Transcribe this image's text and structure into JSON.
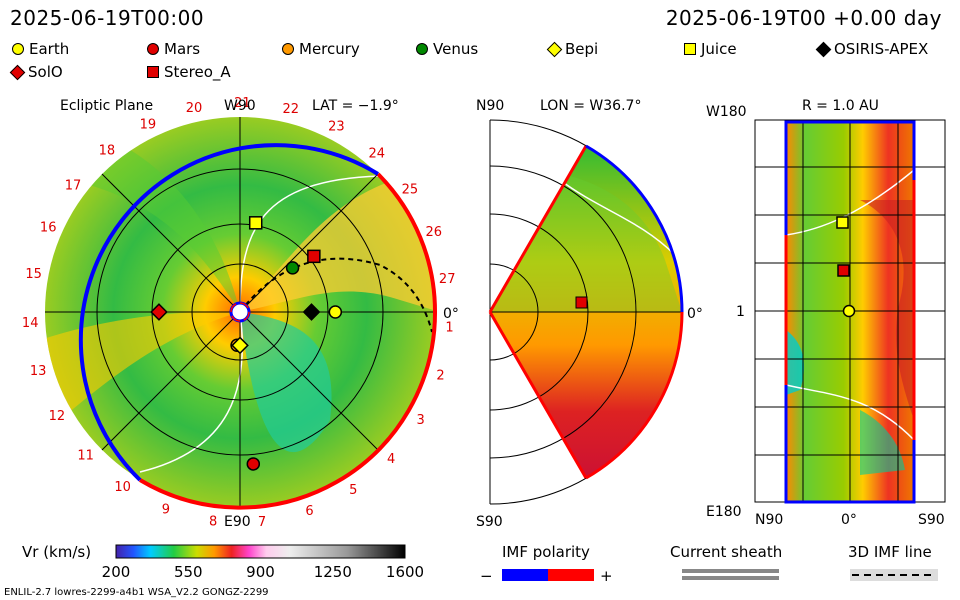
{
  "header": {
    "left_datetime": "2025-06-19T00:00",
    "right_datetime": "2025-06-19T00 +0.00 day"
  },
  "legend": [
    {
      "name": "Earth",
      "shape": "circle",
      "color": "#ffff00"
    },
    {
      "name": "Mars",
      "shape": "circle",
      "color": "#e00000"
    },
    {
      "name": "Mercury",
      "shape": "circle",
      "color": "#ff9900"
    },
    {
      "name": "Venus",
      "shape": "circle",
      "color": "#008800"
    },
    {
      "name": "Bepi",
      "shape": "diamond",
      "color": "#ffff00"
    },
    {
      "name": "Juice",
      "shape": "square",
      "color": "#ffff00"
    },
    {
      "name": "OSIRIS-APEX",
      "shape": "diamond",
      "color": "#000000"
    },
    {
      "name": "SolO",
      "shape": "diamond",
      "color": "#e00000"
    },
    {
      "name": "Stereo_A",
      "shape": "square",
      "color": "#e00000"
    }
  ],
  "panels": {
    "ecliptic": {
      "title": "Ecliptic Plane",
      "top_label": "W90",
      "bottom_label": "E90",
      "right_label": "0°",
      "lat_label": "LAT = −1.9°",
      "carrington_ticks": [
        "1",
        "2",
        "3",
        "4",
        "5",
        "6",
        "7",
        "8",
        "9",
        "10",
        "11",
        "12",
        "13",
        "14",
        "15",
        "16",
        "17",
        "18",
        "19",
        "20",
        "21",
        "22",
        "23",
        "24",
        "25",
        "26",
        "27"
      ]
    },
    "meridional": {
      "top_label": "N90",
      "bottom_label": "S90",
      "right_label": "0°",
      "lon_label": "LON = W36.7°"
    },
    "sphere": {
      "r_label": "R = 1.0 AU",
      "top_left_label": "W180",
      "mid_left_label": "1",
      "bottom_left_label": "E180",
      "x_labels": [
        "N90",
        "0°",
        "S90"
      ]
    }
  },
  "colorbar": {
    "label": "Vr (km/s)",
    "ticks": [
      "200",
      "550",
      "900",
      "1250",
      "1600"
    ]
  },
  "imf": {
    "polarity_label": "IMF polarity",
    "minus": "−",
    "plus": "+",
    "negative_color": "#0000ff",
    "positive_color": "#ff0000",
    "current_sheath_label": "Current sheath",
    "imf_line_label": "3D IMF line"
  },
  "footer": {
    "model_info": "ENLIL-2.7 lowres-2299-a4b1 WSA_V2.2 GONGZ-2299"
  },
  "chart_data": {
    "type": "heatmap",
    "variable": "Vr (km/s)",
    "vrange": [
      200,
      1600
    ],
    "bodies_ecliptic": [
      {
        "name": "Earth",
        "r_au": 1.0,
        "lon_deg": 0
      },
      {
        "name": "Venus",
        "r_au": 0.72,
        "lon_deg": 40
      },
      {
        "name": "Mercury",
        "r_au": 0.35,
        "lon_deg": -95
      },
      {
        "name": "Mars",
        "r_au": 1.6,
        "lon_deg": -85
      },
      {
        "name": "Bepi",
        "r_au": 0.35,
        "lon_deg": -90
      },
      {
        "name": "Juice",
        "r_au": 0.95,
        "lon_deg": 80
      },
      {
        "name": "OSIRIS-APEX",
        "r_au": 0.75,
        "lon_deg": 0
      },
      {
        "name": "SolO",
        "r_au": 0.85,
        "lon_deg": 180
      },
      {
        "name": "Stereo_A",
        "r_au": 0.97,
        "lon_deg": 37
      }
    ]
  }
}
